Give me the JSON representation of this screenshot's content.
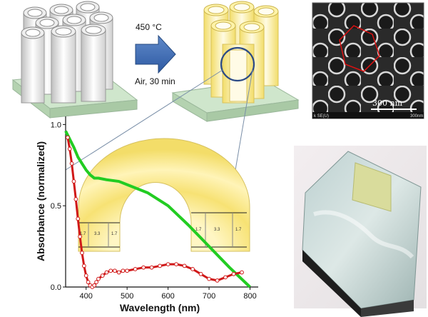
{
  "process": {
    "temperature": "450 °C",
    "condition": "Air, 30 min"
  },
  "sem": {
    "scale_label": "300 nm",
    "footer_left": "k SE(U)",
    "footer_right": "300nm"
  },
  "ring": {
    "left_dims": [
      "1.7",
      "3.3",
      "1.7"
    ],
    "right_dims": [
      "1.7",
      "3.3",
      "1.7"
    ]
  },
  "chart_data": {
    "type": "scatter",
    "xlabel": "Wavelength (nm)",
    "ylabel": "Absorbance (normalized)",
    "xlim": [
      350,
      820
    ],
    "ylim": [
      0,
      1.05
    ],
    "x_ticks": [
      400,
      500,
      600,
      700,
      800
    ],
    "y_ticks": [
      "0.0",
      "0.5",
      "1.0"
    ],
    "series": [
      {
        "style": "line",
        "color": "#22cc22",
        "x": [
          350,
          360,
          370,
          380,
          390,
          400,
          410,
          420,
          430,
          450,
          480,
          500,
          550,
          600,
          650,
          700,
          750,
          800
        ],
        "y": [
          0.96,
          0.91,
          0.86,
          0.8,
          0.76,
          0.72,
          0.69,
          0.67,
          0.67,
          0.66,
          0.65,
          0.63,
          0.58,
          0.5,
          0.38,
          0.25,
          0.12,
          0.0
        ]
      },
      {
        "style": "markers",
        "color": "#d01818",
        "x": [
          355,
          360,
          365,
          370,
          375,
          380,
          385,
          390,
          395,
          400,
          405,
          410,
          415,
          420,
          425,
          430,
          440,
          450,
          460,
          470,
          480,
          490,
          500,
          520,
          540,
          560,
          580,
          600,
          620,
          640,
          660,
          680,
          700,
          720,
          740,
          760,
          780
        ],
        "y": [
          0.92,
          0.85,
          0.76,
          0.65,
          0.54,
          0.42,
          0.31,
          0.21,
          0.13,
          0.07,
          0.03,
          0.01,
          0.0,
          0.01,
          0.03,
          0.05,
          0.07,
          0.09,
          0.1,
          0.1,
          0.09,
          0.1,
          0.1,
          0.11,
          0.12,
          0.12,
          0.13,
          0.14,
          0.14,
          0.13,
          0.11,
          0.08,
          0.05,
          0.04,
          0.06,
          0.08,
          0.09
        ]
      }
    ]
  }
}
